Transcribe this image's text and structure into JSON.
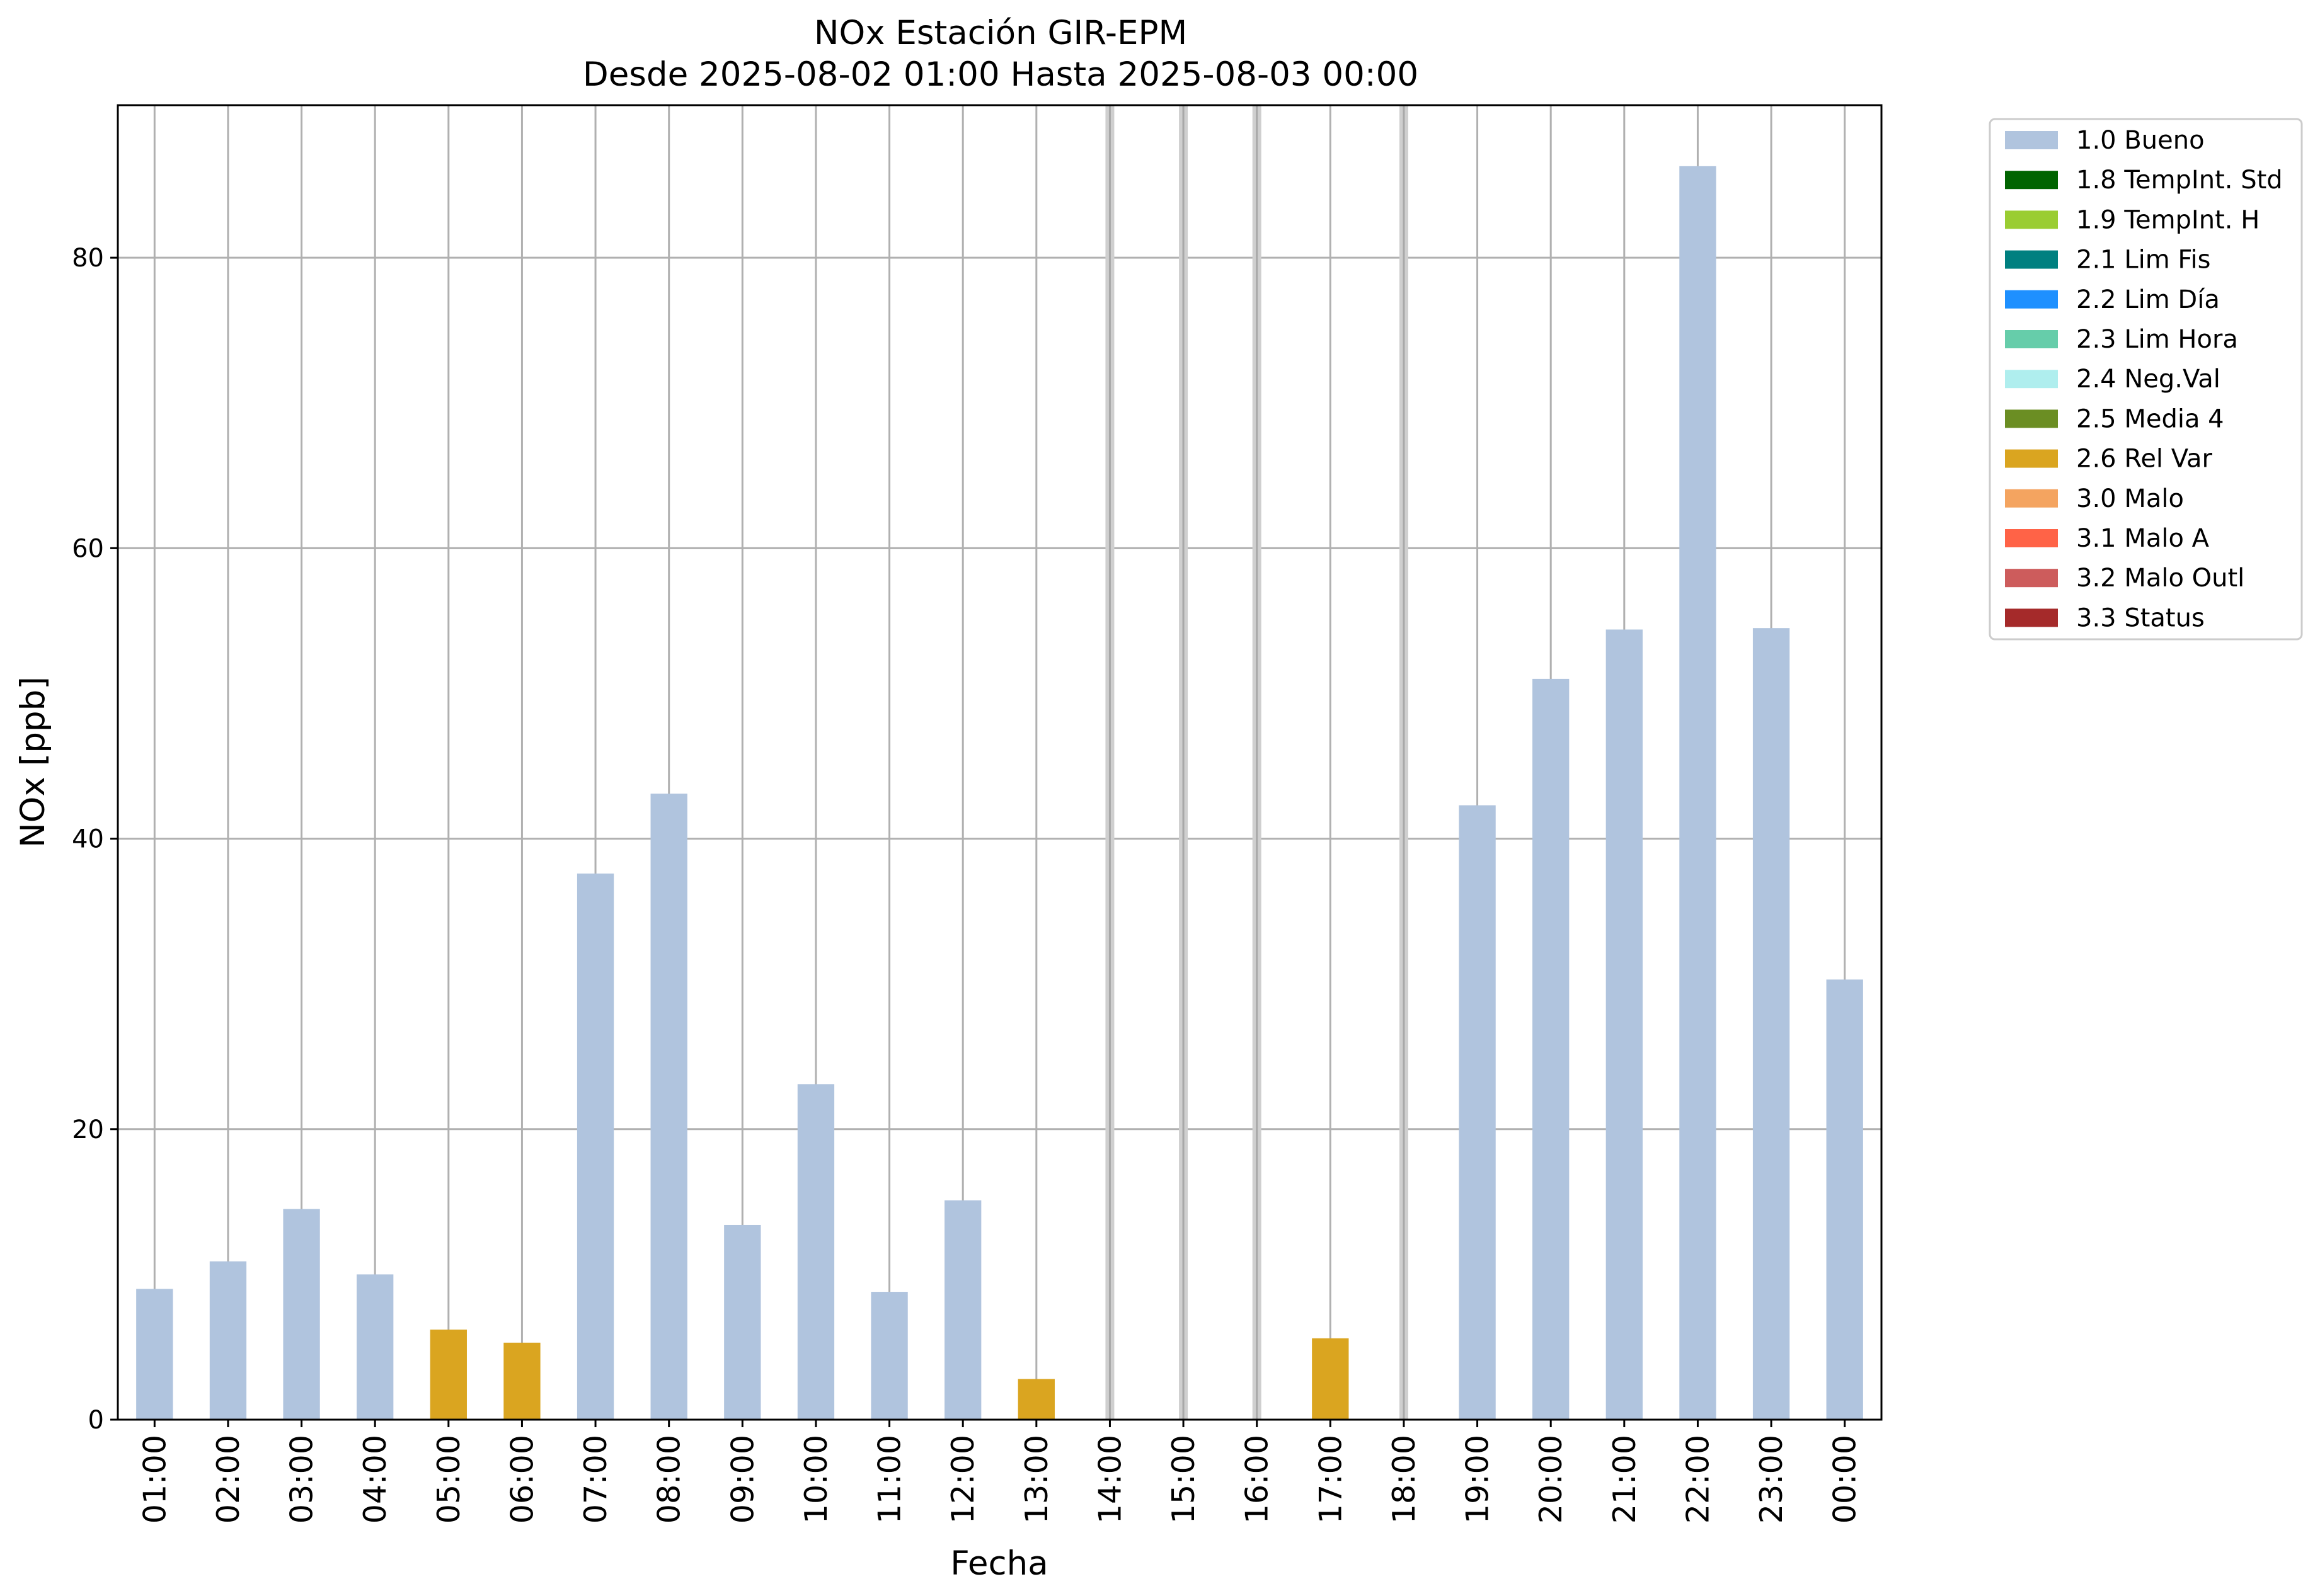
{
  "chart_data": {
    "type": "bar",
    "title": "NOx Estación GIR-EPM",
    "subtitle": "Desde 2025-08-02 01:00 Hasta 2025-08-03 00:00",
    "xlabel": "Fecha",
    "ylabel": "NOx [ppb]",
    "ylim": [
      0,
      90.5
    ],
    "yticks": [
      0,
      20,
      40,
      60,
      80
    ],
    "grid": true,
    "legend_position": "outside-top-right",
    "categories": [
      "01:00",
      "02:00",
      "03:00",
      "04:00",
      "05:00",
      "06:00",
      "07:00",
      "08:00",
      "09:00",
      "10:00",
      "11:00",
      "12:00",
      "13:00",
      "14:00",
      "15:00",
      "16:00",
      "17:00",
      "18:00",
      "19:00",
      "20:00",
      "21:00",
      "22:00",
      "23:00",
      "00:00"
    ],
    "values": [
      9.0,
      10.9,
      14.5,
      10.0,
      6.2,
      5.3,
      37.6,
      43.1,
      13.4,
      23.1,
      8.8,
      15.1,
      2.8,
      null,
      null,
      null,
      5.6,
      null,
      42.3,
      51.0,
      54.4,
      86.3,
      54.5,
      30.3
    ],
    "flags": [
      "1.0 Bueno",
      "1.0 Bueno",
      "1.0 Bueno",
      "1.0 Bueno",
      "2.6 Rel Var",
      "2.6 Rel Var",
      "1.0 Bueno",
      "1.0 Bueno",
      "1.0 Bueno",
      "1.0 Bueno",
      "1.0 Bueno",
      "1.0 Bueno",
      "2.6 Rel Var",
      null,
      null,
      null,
      "2.6 Rel Var",
      null,
      "1.0 Bueno",
      "1.0 Bueno",
      "1.0 Bueno",
      "1.0 Bueno",
      "1.0 Bueno",
      "1.0 Bueno"
    ],
    "legend": [
      {
        "label": "1.0 Bueno",
        "color": "#b0c4de"
      },
      {
        "label": "1.8 TempInt. Std",
        "color": "#006400"
      },
      {
        "label": "1.9 TempInt. H",
        "color": "#9acd32"
      },
      {
        "label": "2.1 Lim Fis",
        "color": "#008080"
      },
      {
        "label": "2.2 Lim Día",
        "color": "#1e90ff"
      },
      {
        "label": "2.3 Lim Hora",
        "color": "#66cdaa"
      },
      {
        "label": "2.4 Neg.Val",
        "color": "#afeeee"
      },
      {
        "label": "2.5 Media 4",
        "color": "#6b8e23"
      },
      {
        "label": "2.6 Rel Var",
        "color": "#daa520"
      },
      {
        "label": "3.0 Malo",
        "color": "#f4a460"
      },
      {
        "label": "3.1 Malo A",
        "color": "#ff6347"
      },
      {
        "label": "3.2 Malo Outl",
        "color": "#cd5c5c"
      },
      {
        "label": "3.3 Status",
        "color": "#a52a2a"
      }
    ]
  }
}
